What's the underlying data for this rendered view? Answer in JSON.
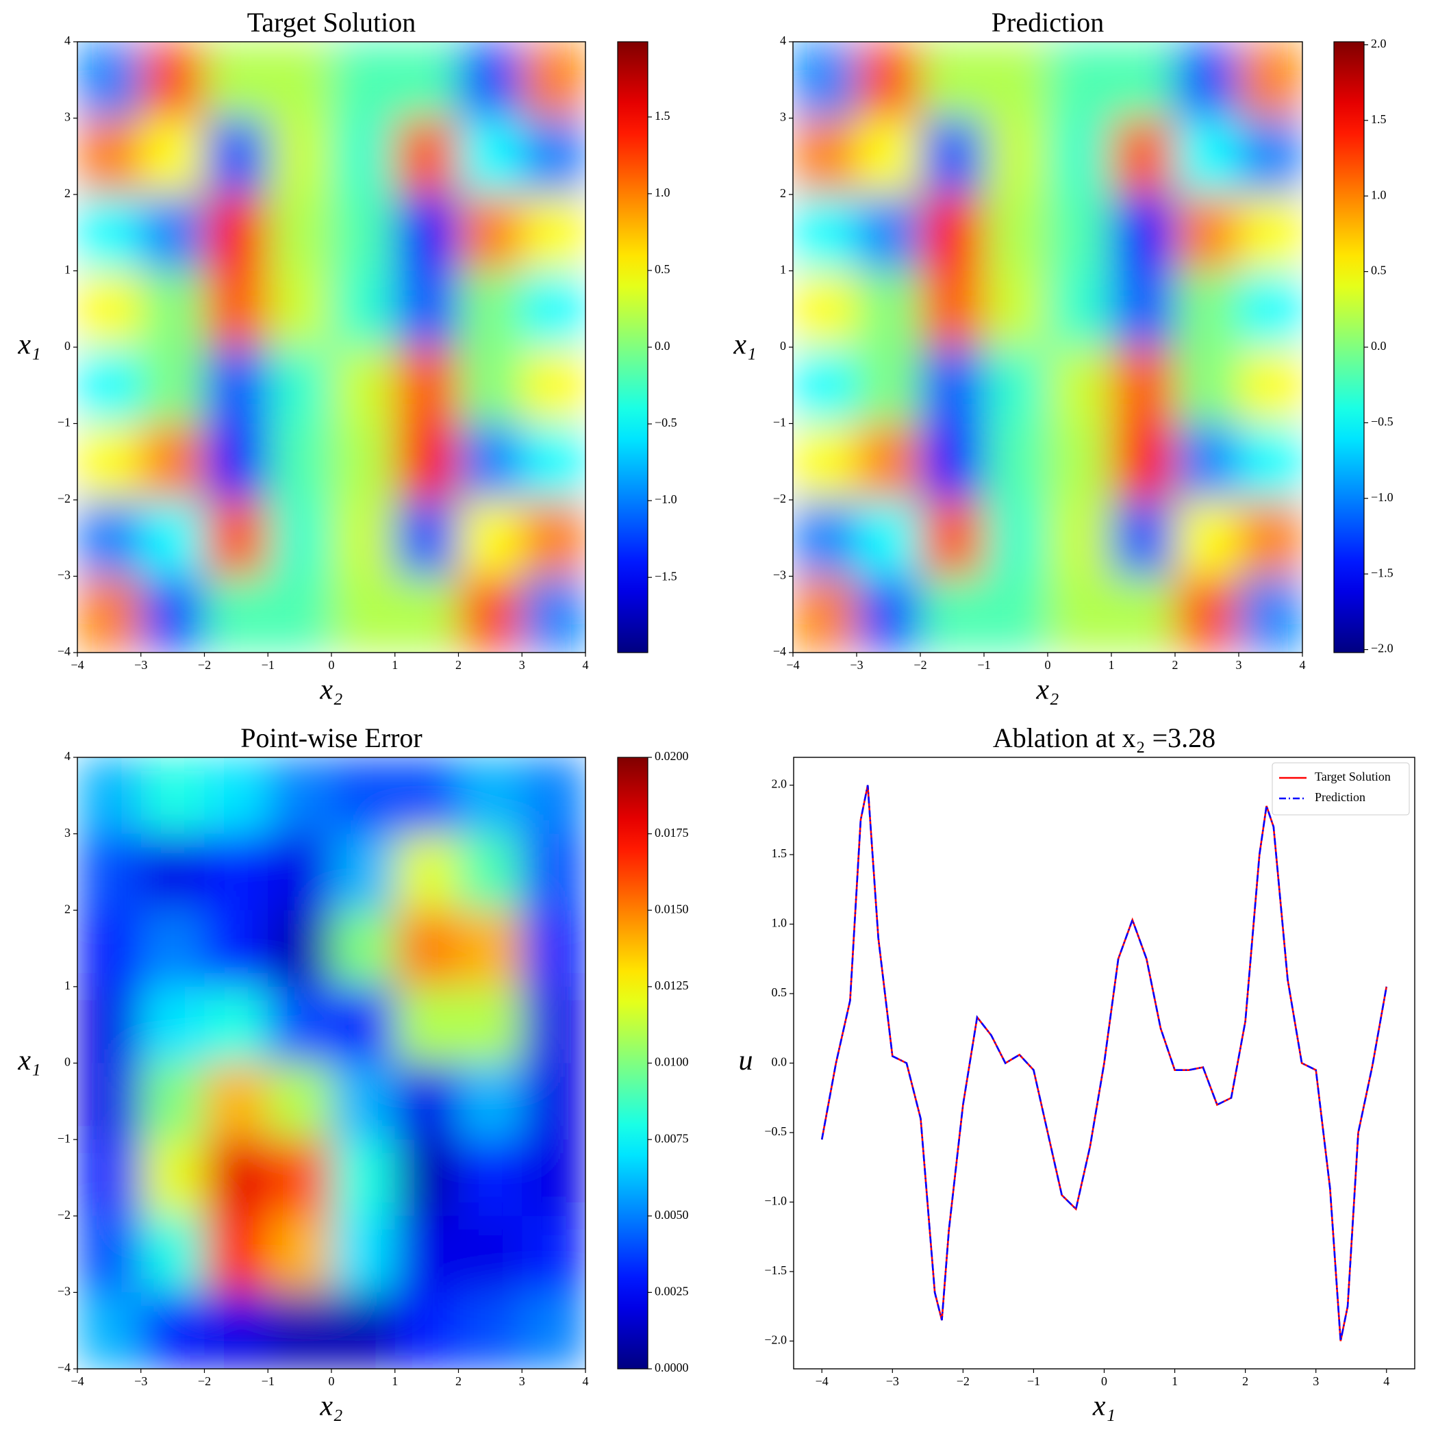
{
  "chart_data": [
    {
      "type": "heatmap",
      "title": "Target Solution",
      "xlabel": "x₂",
      "ylabel": "x₁",
      "colormap": "jet",
      "x": [
        -3.5,
        -2.5,
        -1.5,
        -0.5,
        0.5,
        1.5,
        2.5,
        3.5
      ],
      "y": [
        3.5,
        2.5,
        1.5,
        0.5,
        -0.5,
        -1.5,
        -2.5,
        -3.5
      ],
      "z": [
        [
          -1,
          1.2,
          0.2,
          0.2,
          -0.2,
          -0.2,
          -1.2,
          1
        ],
        [
          1,
          0.5,
          -1.2,
          0.3,
          -0.3,
          1.2,
          -0.5,
          -1
        ],
        [
          -0.5,
          -1,
          1.5,
          0.2,
          -0.2,
          -1.5,
          1,
          0.5
        ],
        [
          0.5,
          0,
          1.2,
          0.3,
          -0.3,
          -1.2,
          0,
          -0.5
        ],
        [
          -0.5,
          0,
          -1.2,
          -0.3,
          0.3,
          1.2,
          0,
          0.5
        ],
        [
          0.5,
          1,
          -1.5,
          -0.2,
          0.2,
          1.5,
          -1,
          -0.5
        ],
        [
          -1,
          -0.5,
          1.2,
          -0.3,
          0.3,
          -1.2,
          0.5,
          1
        ],
        [
          1,
          -1.2,
          -0.2,
          -0.2,
          0.2,
          0.2,
          1.2,
          -1
        ]
      ],
      "xlim": [
        -4,
        4
      ],
      "ylim": [
        -4,
        4
      ],
      "xticks": [
        {
          "value": -4,
          "label": "−4"
        },
        {
          "value": -3,
          "label": "−3"
        },
        {
          "value": -2,
          "label": "−2"
        },
        {
          "value": -1,
          "label": "−1"
        },
        0,
        1,
        2,
        3,
        4
      ],
      "yticks": [
        {
          "value": -4,
          "label": "−4"
        },
        {
          "value": -3,
          "label": "−3"
        },
        {
          "value": -2,
          "label": "−2"
        },
        {
          "value": -1,
          "label": "−1"
        },
        0,
        1,
        2,
        3,
        4
      ],
      "colorbar_lim": [
        -1.99,
        1.99
      ],
      "colorbar_ticks": [
        {
          "value": -1.5,
          "label": "−1.5"
        },
        {
          "value": -1,
          "label": "−1.0"
        },
        {
          "value": -0.5,
          "label": "−0.5"
        },
        {
          "value": 0,
          "label": "0.0"
        },
        0.5,
        {
          "value": 1,
          "label": "1.0"
        },
        1.5
      ]
    },
    {
      "type": "heatmap",
      "title": "Prediction",
      "xlabel": "x₂",
      "ylabel": "x₁",
      "colormap": "jet",
      "x": [
        -3.5,
        -2.5,
        -1.5,
        -0.5,
        0.5,
        1.5,
        2.5,
        3.5
      ],
      "y": [
        3.5,
        2.5,
        1.5,
        0.5,
        -0.5,
        -1.5,
        -2.5,
        -3.5
      ],
      "z": [
        [
          -1,
          1.2,
          0.2,
          0.2,
          -0.2,
          -0.2,
          -1.2,
          1
        ],
        [
          1,
          0.5,
          -1.2,
          0.3,
          -0.3,
          1.2,
          -0.5,
          -1
        ],
        [
          -0.5,
          -1,
          1.5,
          0.2,
          -0.2,
          -1.5,
          1,
          0.5
        ],
        [
          0.5,
          0,
          1.2,
          0.3,
          -0.3,
          -1.2,
          0,
          -0.5
        ],
        [
          -0.5,
          0,
          -1.2,
          -0.3,
          0.3,
          1.2,
          0,
          0.5
        ],
        [
          0.5,
          1,
          -1.5,
          -0.2,
          0.2,
          1.5,
          -1,
          -0.5
        ],
        [
          -1,
          -0.5,
          1.2,
          -0.3,
          0.3,
          -1.2,
          0.5,
          1
        ],
        [
          1,
          -1.2,
          -0.2,
          -0.2,
          0.2,
          0.2,
          1.2,
          -1
        ]
      ],
      "xlim": [
        -4,
        4
      ],
      "ylim": [
        -4,
        4
      ],
      "xticks": [
        {
          "value": -4,
          "label": "−4"
        },
        {
          "value": -3,
          "label": "−3"
        },
        {
          "value": -2,
          "label": "−2"
        },
        {
          "value": -1,
          "label": "−1"
        },
        0,
        1,
        2,
        3,
        4
      ],
      "yticks": [
        {
          "value": -4,
          "label": "−4"
        },
        {
          "value": -3,
          "label": "−3"
        },
        {
          "value": -2,
          "label": "−2"
        },
        {
          "value": -1,
          "label": "−1"
        },
        0,
        1,
        2,
        3,
        4
      ],
      "colorbar_lim": [
        -2.02,
        2.02
      ],
      "colorbar_ticks": [
        {
          "value": -2,
          "label": "−2.0"
        },
        {
          "value": -1.5,
          "label": "−1.5"
        },
        {
          "value": -1,
          "label": "−1.0"
        },
        {
          "value": -0.5,
          "label": "−0.5"
        },
        {
          "value": 0,
          "label": "0.0"
        },
        0.5,
        {
          "value": 1,
          "label": "1.0"
        },
        1.5,
        {
          "value": 2,
          "label": "2.0"
        }
      ]
    },
    {
      "type": "heatmap",
      "title": "Point-wise Error",
      "xlabel": "x₂",
      "ylabel": "x₁",
      "colormap": "jet",
      "x": [
        -3.5,
        -2.5,
        -1.5,
        -0.5,
        0.5,
        1.5,
        2.5,
        3.5
      ],
      "y": [
        3.5,
        2.5,
        1.5,
        0.5,
        -0.5,
        -1.5,
        -2.5,
        -3.5
      ],
      "z": [
        [
          0.006,
          0.008,
          0.007,
          0.005,
          0.004,
          0.004,
          0.006,
          0.005
        ],
        [
          0.004,
          0.002,
          0.003,
          0.002,
          0.006,
          0.012,
          0.009,
          0.004
        ],
        [
          0.003,
          0.005,
          0.003,
          0.001,
          0.01,
          0.015,
          0.014,
          0.003
        ],
        [
          0.002,
          0.007,
          0.008,
          0.004,
          0.003,
          0.011,
          0.011,
          0.002
        ],
        [
          0.002,
          0.01,
          0.014,
          0.011,
          0.006,
          0.002,
          0.006,
          0.002
        ],
        [
          0.003,
          0.012,
          0.018,
          0.016,
          0.008,
          0.001,
          0.003,
          0.002
        ],
        [
          0.004,
          0.008,
          0.017,
          0.014,
          0.007,
          0.002,
          0.002,
          0.003
        ],
        [
          0.006,
          0.003,
          0.002,
          0.001,
          0.001,
          0.003,
          0.004,
          0.005
        ]
      ],
      "xlim": [
        -4,
        4
      ],
      "ylim": [
        -4,
        4
      ],
      "xticks": [
        {
          "value": -4,
          "label": "−4"
        },
        {
          "value": -3,
          "label": "−3"
        },
        {
          "value": -2,
          "label": "−2"
        },
        {
          "value": -1,
          "label": "−1"
        },
        0,
        1,
        2,
        3,
        4
      ],
      "yticks": [
        {
          "value": -4,
          "label": "−4"
        },
        {
          "value": -3,
          "label": "−3"
        },
        {
          "value": -2,
          "label": "−2"
        },
        {
          "value": -1,
          "label": "−1"
        },
        0,
        1,
        2,
        3,
        4
      ],
      "colorbar_lim": [
        0,
        0.02
      ],
      "colorbar_ticks": [
        {
          "value": 0,
          "label": "0.0000"
        },
        {
          "value": 0.0025,
          "label": "0.0025"
        },
        {
          "value": 0.005,
          "label": "0.0050"
        },
        {
          "value": 0.0075,
          "label": "0.0075"
        },
        {
          "value": 0.01,
          "label": "0.0100"
        },
        {
          "value": 0.0125,
          "label": "0.0125"
        },
        {
          "value": 0.015,
          "label": "0.0150"
        },
        {
          "value": 0.0175,
          "label": "0.0175"
        },
        {
          "value": 0.02,
          "label": "0.0200"
        }
      ]
    },
    {
      "type": "line",
      "title": "Ablation at x₂ =3.28",
      "xlabel": "x₁",
      "ylabel": "u",
      "legend": "upper right",
      "x": [
        -4,
        -3.8,
        -3.6,
        -3.45,
        -3.35,
        -3.2,
        -3,
        -2.8,
        -2.6,
        -2.4,
        -2.3,
        -2.2,
        -2,
        -1.8,
        -1.6,
        -1.4,
        -1.2,
        -1,
        -0.8,
        -0.6,
        -0.4,
        -0.2,
        0,
        0.2,
        0.4,
        0.6,
        0.8,
        1,
        1.2,
        1.4,
        1.6,
        1.8,
        2,
        2.2,
        2.3,
        2.4,
        2.6,
        2.8,
        3,
        3.2,
        3.35,
        3.45,
        3.6,
        3.8,
        4
      ],
      "series": [
        {
          "name": "Target Solution",
          "color": "#ff0000",
          "linestyle": "solid",
          "values": [
            -0.55,
            0,
            0.45,
            1.75,
            2,
            0.9,
            0.05,
            0,
            -0.4,
            -1.65,
            -1.85,
            -1.2,
            -0.3,
            0.33,
            0.2,
            0,
            0.06,
            -0.05,
            -0.5,
            -0.95,
            -1.05,
            -0.6,
            0,
            0.75,
            1.03,
            0.75,
            0.25,
            -0.05,
            -0.05,
            -0.03,
            -0.3,
            -0.25,
            0.3,
            1.5,
            1.85,
            1.7,
            0.6,
            0,
            -0.05,
            -0.9,
            -2,
            -1.75,
            -0.5,
            -0.02,
            0.55
          ]
        },
        {
          "name": "Prediction",
          "color": "#0000ff",
          "linestyle": "dashdot",
          "values": [
            -0.55,
            0,
            0.45,
            1.75,
            2,
            0.9,
            0.05,
            0,
            -0.4,
            -1.65,
            -1.85,
            -1.2,
            -0.3,
            0.33,
            0.2,
            0,
            0.06,
            -0.05,
            -0.5,
            -0.95,
            -1.05,
            -0.6,
            0,
            0.75,
            1.03,
            0.75,
            0.25,
            -0.05,
            -0.05,
            -0.03,
            -0.3,
            -0.25,
            0.3,
            1.5,
            1.85,
            1.7,
            0.6,
            0,
            -0.05,
            -0.9,
            -2,
            -1.75,
            -0.5,
            -0.02,
            0.55
          ]
        }
      ],
      "xlim": [
        -4.4,
        4.4
      ],
      "ylim": [
        -2.2,
        2.2
      ],
      "xticks": [
        {
          "value": -4,
          "label": "−4"
        },
        {
          "value": -3,
          "label": "−3"
        },
        {
          "value": -2,
          "label": "−2"
        },
        {
          "value": -1,
          "label": "−1"
        },
        0,
        1,
        2,
        3,
        4
      ],
      "yticks": [
        {
          "value": -2,
          "label": "−2.0"
        },
        {
          "value": -1.5,
          "label": "−1.5"
        },
        {
          "value": -1,
          "label": "−1.0"
        },
        {
          "value": -0.5,
          "label": "−0.5"
        },
        {
          "value": 0,
          "label": "0.0"
        },
        0.5,
        {
          "value": 1,
          "label": "1.0"
        },
        1.5,
        {
          "value": 2,
          "label": "2.0"
        }
      ]
    }
  ]
}
